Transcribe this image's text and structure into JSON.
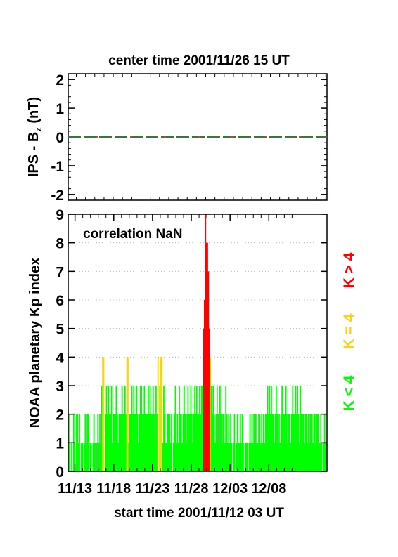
{
  "figure": {
    "top_title": "center time 2001/11/26 15 UT",
    "bottom_title": "start time 2001/11/12 03 UT"
  },
  "chart_data": [
    {
      "type": "line",
      "title": "center time 2001/11/26 15 UT",
      "ylabel_main": "IPS - B",
      "ylabel_sub": "z",
      "ylabel_unit": " (nT)",
      "ylim": [
        -2.2,
        2.2
      ],
      "yticks": [
        "2",
        "1",
        "0",
        "-1",
        "-2"
      ],
      "ytick_values": [
        2,
        1,
        0,
        -1,
        -2
      ],
      "x_days": [
        0,
        28
      ],
      "series": [
        {
          "values": [
            0,
            0
          ],
          "color": "#2e7d32",
          "style": "dashed"
        },
        {
          "values": [
            0,
            0
          ],
          "color": "#e53935",
          "style": "dashed"
        }
      ]
    },
    {
      "type": "bar",
      "title": "",
      "xlabel": "start time 2001/11/12 03 UT",
      "ylabel": "NOAA planetary Kp index",
      "annotation": "correlation NaN",
      "ylim": [
        0,
        9
      ],
      "yticks": [
        "0",
        "1",
        "2",
        "3",
        "4",
        "5",
        "6",
        "7",
        "8",
        "9"
      ],
      "xticks": [
        "11/13",
        "11/18",
        "11/23",
        "11/28",
        "12/03",
        "12/08"
      ],
      "xtick_days": [
        0.875,
        5.875,
        10.875,
        15.875,
        20.875,
        25.875
      ],
      "interval_hours": 3,
      "legend": [
        "K < 4",
        "K = 4",
        "K > 4"
      ],
      "legend_colors": [
        "#00ff00",
        "#ffd400",
        "#ff0000"
      ],
      "colors": {
        "low": "#00ff00",
        "mid": "#ffd400",
        "high": "#ff0000"
      },
      "kp_values": [
        2,
        1,
        0,
        1,
        0,
        2,
        1,
        0,
        2,
        2,
        1,
        2,
        0,
        1,
        1,
        0,
        1,
        2,
        1,
        2,
        2,
        0,
        1,
        1,
        0,
        1,
        2,
        1,
        0,
        1,
        2,
        1,
        2,
        1,
        3,
        4,
        4,
        0,
        2,
        3,
        2,
        3,
        2,
        2,
        3,
        1,
        2,
        2,
        2,
        3,
        2,
        1,
        2,
        2,
        2,
        3,
        2,
        2,
        3,
        2,
        4,
        4,
        1,
        2,
        2,
        3,
        2,
        3,
        2,
        2,
        3,
        2,
        1,
        2,
        3,
        3,
        2,
        2,
        3,
        2,
        2,
        2,
        3,
        2,
        3,
        2,
        2,
        3,
        2,
        1,
        3,
        2,
        4,
        0,
        3,
        4,
        4,
        1,
        3,
        2,
        1,
        1,
        2,
        2,
        2,
        1,
        2,
        0,
        1,
        2,
        3,
        1,
        2,
        1,
        3,
        2,
        2,
        1,
        2,
        3,
        2,
        1,
        2,
        3,
        2,
        2,
        3,
        2,
        1,
        2,
        3,
        2,
        3,
        2,
        2,
        3,
        2,
        3,
        3,
        5,
        6,
        9,
        8,
        8,
        7,
        5,
        4,
        3,
        2,
        3,
        2,
        1,
        2,
        3,
        2,
        1,
        3,
        2,
        1,
        2,
        2,
        1,
        3,
        2,
        1,
        2,
        1,
        2,
        1,
        0,
        1,
        2,
        0,
        1,
        2,
        1,
        1,
        2,
        1,
        2,
        1,
        0,
        1,
        1,
        1,
        0,
        1,
        2,
        1,
        2,
        1,
        2,
        1,
        2,
        1,
        1,
        2,
        2,
        1,
        2,
        1,
        2,
        1,
        2,
        2,
        3,
        2,
        3,
        2,
        3,
        2,
        2,
        1,
        2,
        3,
        2,
        1,
        2,
        1,
        2,
        3,
        2,
        2,
        2,
        3,
        2,
        1,
        2,
        2,
        1,
        2,
        3,
        2,
        2,
        3,
        2,
        3,
        2,
        1,
        3,
        2,
        2,
        2,
        1,
        2,
        2,
        1,
        2,
        1,
        2,
        2,
        2,
        1,
        2,
        2,
        1,
        2,
        2,
        1,
        1,
        2,
        1,
        0,
        1,
        2,
        1,
        1
      ]
    }
  ]
}
